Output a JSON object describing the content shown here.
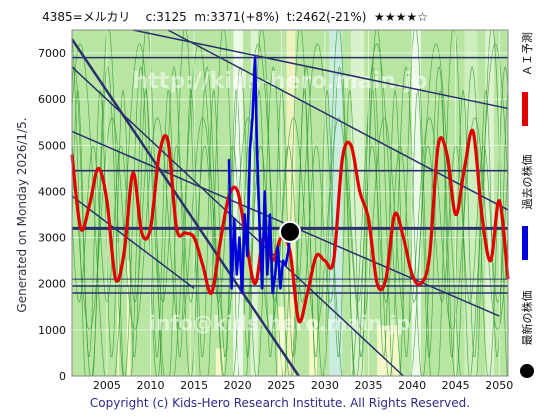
{
  "header": {
    "title": "4385=メルカリ    c:3125  m:3371(+8%)  t:2462(-21%)  ★★★★☆"
  },
  "side_label": "Generated on Monday 2026/1/5.",
  "footer": "Copyright (c) Kids-Hero Research Institute. All Rights Reserved.",
  "watermark": {
    "top": "http://kids-hero.main.jp",
    "bottom": "info@kids-hero.main.jp"
  },
  "legend": [
    {
      "label": "ＡＩ予測",
      "color": "#e00000",
      "icon": "red-line"
    },
    {
      "label": "過去の株価",
      "color": "#0000dd",
      "icon": "blue-line"
    },
    {
      "label": "最新の株価",
      "color": "#000000",
      "icon": "black-dot"
    }
  ],
  "colors": {
    "ai": "#e00000",
    "past": "#0000dd",
    "latest": "#000000",
    "trend": "#2a2f6e"
  },
  "chart_data": {
    "type": "line",
    "title": "4385=メルカリ    c:3125  m:3371(+8%)  t:2462(-21%)  ★★★★☆",
    "xlim": [
      2001,
      2051
    ],
    "ylim": [
      0,
      7500
    ],
    "xticks": [
      2005,
      2010,
      2015,
      2020,
      2025,
      2030,
      2035,
      2040,
      2045,
      2050
    ],
    "yticks": [
      0,
      1000,
      2000,
      3000,
      4000,
      5000,
      6000,
      7000
    ],
    "grid": true,
    "legend_position": "right",
    "series": [
      {
        "name": "ＡＩ予測",
        "color": "#e00000",
        "x": [
          2001,
          2002,
          2003,
          2004,
          2005,
          2006,
          2007,
          2008,
          2009,
          2010,
          2011,
          2012,
          2013,
          2014,
          2015,
          2016,
          2017,
          2018,
          2019,
          2020,
          2021,
          2022,
          2023,
          2024,
          2025,
          2026,
          2027,
          2028,
          2029,
          2030,
          2031,
          2032,
          2033,
          2034,
          2035,
          2036,
          2037,
          2038,
          2039,
          2040,
          2041,
          2042,
          2043,
          2044,
          2045,
          2046,
          2047,
          2048,
          2049,
          2050,
          2051
        ],
        "y": [
          4800,
          3200,
          3700,
          4500,
          3800,
          2100,
          2700,
          4400,
          3100,
          3200,
          4800,
          5100,
          3200,
          3100,
          3000,
          2400,
          1800,
          2900,
          3900,
          4000,
          2900,
          2000,
          3000,
          2500,
          3000,
          2700,
          1200,
          1800,
          2600,
          2500,
          2500,
          4700,
          5000,
          4000,
          3400,
          2000,
          2100,
          3500,
          3000,
          2200,
          2000,
          2600,
          5000,
          4800,
          3500,
          4500,
          5300,
          3500,
          2500,
          3800,
          2100
        ]
      },
      {
        "name": "過去の株価",
        "color": "#0000dd",
        "x": [
          2019.0,
          2019.3,
          2019.6,
          2019.9,
          2020.2,
          2020.5,
          2020.8,
          2021.1,
          2021.4,
          2021.7,
          2022.0,
          2022.2,
          2022.5,
          2022.8,
          2023.1,
          2023.4,
          2023.7,
          2024.0,
          2024.3,
          2024.6,
          2024.9,
          2025.2,
          2025.5,
          2025.8,
          2026.0
        ],
        "y": [
          4700,
          1900,
          3400,
          2200,
          3000,
          1800,
          3500,
          2600,
          4900,
          5600,
          6900,
          5000,
          3300,
          1900,
          4000,
          2200,
          3500,
          1800,
          2200,
          2800,
          1900,
          2500,
          2400,
          2700,
          3125
        ]
      },
      {
        "name": "最新の株価",
        "color": "#000000",
        "x": [
          2026.0
        ],
        "y": [
          3125
        ]
      }
    ]
  }
}
